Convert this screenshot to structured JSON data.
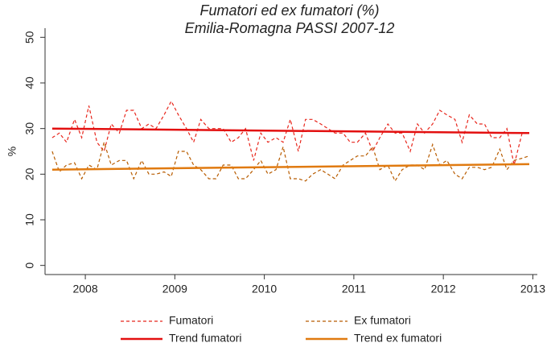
{
  "chart_data": {
    "type": "line",
    "title": "Fumatori ed ex fumatori (%)",
    "subtitle": "Emilia-Romagna PASSI 2007-12",
    "y_label": "%",
    "xlim": [
      2007.55,
      2013.05
    ],
    "xticks": [
      2008,
      2009,
      2010,
      2011,
      2012,
      2013
    ],
    "ylim": [
      -2,
      52
    ],
    "yticks": [
      0,
      10,
      20,
      30,
      40,
      50
    ],
    "series": [
      {
        "name": "Fumatori",
        "color": "#e8261c",
        "style": "dashed",
        "x": [
          2007.63,
          2007.71,
          2007.79,
          2007.88,
          2007.96,
          2008.04,
          2008.13,
          2008.21,
          2008.29,
          2008.38,
          2008.46,
          2008.54,
          2008.63,
          2008.71,
          2008.79,
          2008.88,
          2008.96,
          2009.04,
          2009.13,
          2009.21,
          2009.29,
          2009.38,
          2009.46,
          2009.54,
          2009.63,
          2009.71,
          2009.79,
          2009.88,
          2009.96,
          2010.04,
          2010.13,
          2010.21,
          2010.29,
          2010.38,
          2010.46,
          2010.54,
          2010.63,
          2010.71,
          2010.79,
          2010.88,
          2010.96,
          2011.04,
          2011.13,
          2011.21,
          2011.29,
          2011.38,
          2011.46,
          2011.54,
          2011.63,
          2011.71,
          2011.79,
          2011.88,
          2011.96,
          2012.04,
          2012.13,
          2012.21,
          2012.29,
          2012.38,
          2012.46,
          2012.54,
          2012.63,
          2012.71,
          2012.79,
          2012.88,
          2012.96
        ],
        "values": [
          28,
          29,
          27,
          32,
          28,
          35,
          27,
          25,
          31,
          29,
          34,
          34,
          30,
          31,
          30,
          33,
          36,
          33,
          30,
          27,
          32,
          30,
          30,
          30,
          27,
          28,
          30,
          23,
          29,
          27,
          28,
          27,
          32,
          25,
          32,
          32,
          31,
          30,
          29,
          29,
          27,
          27,
          29,
          25,
          28,
          31,
          29,
          29,
          25,
          31,
          29,
          31,
          34,
          33,
          32,
          27,
          33,
          31,
          31,
          28,
          28,
          30,
          22,
          29,
          29
        ]
      },
      {
        "name": "Ex fumatori",
        "color": "#b85c00",
        "style": "dashed",
        "x": [
          2007.63,
          2007.71,
          2007.79,
          2007.88,
          2007.96,
          2008.04,
          2008.13,
          2008.21,
          2008.29,
          2008.38,
          2008.46,
          2008.54,
          2008.63,
          2008.71,
          2008.79,
          2008.88,
          2008.96,
          2009.04,
          2009.13,
          2009.21,
          2009.29,
          2009.38,
          2009.46,
          2009.54,
          2009.63,
          2009.71,
          2009.79,
          2009.88,
          2009.96,
          2010.04,
          2010.13,
          2010.21,
          2010.29,
          2010.38,
          2010.46,
          2010.54,
          2010.63,
          2010.71,
          2010.79,
          2010.88,
          2010.96,
          2011.04,
          2011.13,
          2011.21,
          2011.29,
          2011.38,
          2011.46,
          2011.54,
          2011.63,
          2011.71,
          2011.79,
          2011.88,
          2011.96,
          2012.04,
          2012.13,
          2012.21,
          2012.29,
          2012.38,
          2012.46,
          2012.54,
          2012.63,
          2012.71,
          2012.79,
          2012.88,
          2012.96
        ],
        "values": [
          25,
          20.5,
          22,
          22.5,
          19,
          22,
          21,
          27,
          22,
          23,
          23,
          19,
          23,
          20,
          20,
          20.5,
          19.5,
          25,
          25,
          22,
          21,
          19,
          19,
          22,
          22,
          19,
          19,
          21,
          23,
          20,
          21,
          26,
          19,
          19,
          18.5,
          20,
          21,
          20,
          19,
          22,
          23,
          24,
          24,
          26,
          21,
          22,
          18.5,
          21,
          22,
          22,
          21,
          26.5,
          22,
          23,
          20,
          19,
          21.5,
          21.5,
          21,
          21.5,
          25.5,
          21,
          23,
          23.5,
          24
        ]
      },
      {
        "name": "Trend fumatori",
        "color": "#e31010",
        "style": "solid",
        "x": [
          2007.63,
          2012.96
        ],
        "values": [
          30,
          29
        ]
      },
      {
        "name": "Trend ex fumatori",
        "color": "#e07a10",
        "style": "solid",
        "x": [
          2007.63,
          2012.96
        ],
        "values": [
          21,
          22.2
        ]
      }
    ],
    "legend": "bottom"
  }
}
